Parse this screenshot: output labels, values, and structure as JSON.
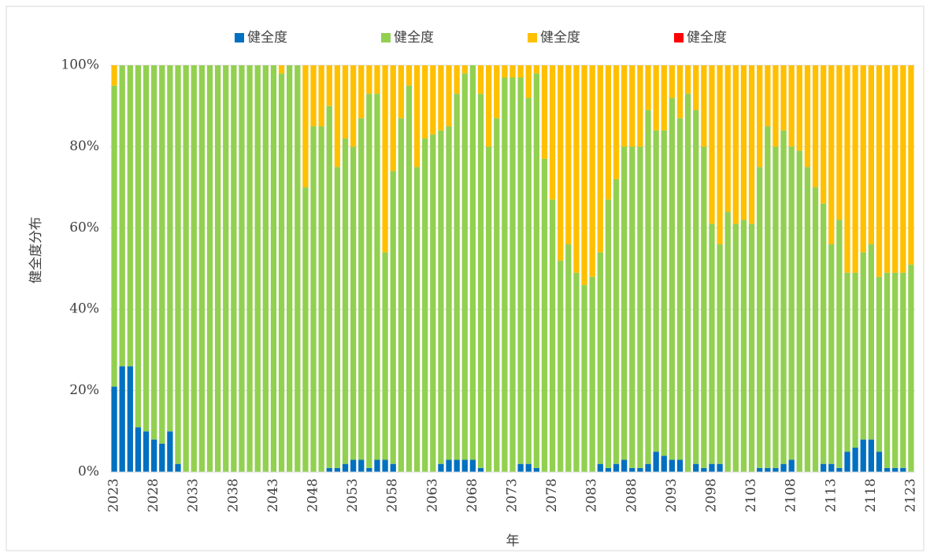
{
  "chart_data": {
    "type": "bar",
    "stacked": true,
    "percent": true,
    "y_label": "健全度分布",
    "x_label": "年",
    "categories": [
      "2023",
      null,
      null,
      null,
      null,
      "2028",
      null,
      null,
      null,
      null,
      "2033",
      null,
      null,
      null,
      null,
      "2038",
      null,
      null,
      null,
      null,
      "2043",
      null,
      null,
      null,
      null,
      "2048",
      null,
      null,
      null,
      null,
      "2053",
      null,
      null,
      null,
      null,
      "2058",
      null,
      null,
      null,
      null,
      "2063",
      null,
      null,
      null,
      null,
      "2068",
      null,
      null,
      null,
      null,
      "2073",
      null,
      null,
      null,
      null,
      "2078",
      null,
      null,
      null,
      null,
      "2083",
      null,
      null,
      null,
      null,
      "2088",
      null,
      null,
      null,
      null,
      "2093",
      null,
      null,
      null,
      null,
      "2098",
      null,
      null,
      null,
      null,
      "2103",
      null,
      null,
      null,
      null,
      "2108",
      null,
      null,
      null,
      null,
      "2113",
      null,
      null,
      null,
      null,
      "2118",
      null,
      null,
      null,
      null,
      "2123"
    ],
    "series": [
      {
        "name": "健全度",
        "color": "#0070c0",
        "values": [
          21,
          26,
          26,
          11,
          10,
          8,
          7,
          10,
          2,
          0,
          0,
          0,
          0,
          0,
          0,
          0,
          0,
          0,
          0,
          0,
          0,
          0,
          0,
          0,
          0,
          0,
          0,
          1,
          1,
          2,
          3,
          3,
          1,
          3,
          3,
          2,
          0,
          0,
          0,
          0,
          0,
          2,
          3,
          3,
          3,
          3,
          1,
          0,
          0,
          0,
          0,
          2,
          2,
          1,
          0,
          0,
          0,
          0,
          0,
          0,
          0,
          2,
          1,
          2,
          3,
          1,
          1,
          2,
          5,
          4,
          3,
          3,
          0,
          2,
          1,
          2,
          2,
          0,
          0,
          0,
          0,
          1,
          1,
          1,
          2,
          3,
          0,
          0,
          0,
          2,
          2,
          1,
          5,
          6,
          8,
          8,
          5,
          1,
          1,
          1,
          0
        ]
      },
      {
        "name": "健全度",
        "color": "#92d050",
        "values": [
          74,
          74,
          74,
          89,
          90,
          92,
          93,
          90,
          98,
          100,
          100,
          100,
          100,
          100,
          100,
          100,
          100,
          100,
          100,
          100,
          100,
          98,
          100,
          100,
          70,
          85,
          85,
          89,
          74,
          80,
          77,
          84,
          92,
          90,
          51,
          72,
          87,
          95,
          75,
          82,
          83,
          82,
          82,
          90,
          95,
          97,
          92,
          80,
          87,
          97,
          97,
          95,
          90,
          97,
          77,
          67,
          52,
          56,
          49,
          46,
          48,
          52,
          66,
          70,
          77,
          79,
          79,
          87,
          79,
          80,
          89,
          84,
          93,
          87,
          79,
          59,
          54,
          64,
          61,
          62,
          61,
          74,
          84,
          79,
          82,
          77,
          79,
          75,
          70,
          64,
          54,
          61,
          44,
          43,
          46,
          48,
          43,
          48,
          48,
          48,
          51
        ]
      },
      {
        "name": "健全度",
        "color": "#ffc000",
        "values": [
          5,
          0,
          0,
          0,
          0,
          0,
          0,
          0,
          0,
          0,
          0,
          0,
          0,
          0,
          0,
          0,
          0,
          0,
          0,
          0,
          0,
          2,
          0,
          0,
          30,
          15,
          15,
          10,
          25,
          18,
          20,
          13,
          7,
          7,
          46,
          26,
          13,
          5,
          25,
          18,
          17,
          16,
          15,
          7,
          2,
          0,
          7,
          20,
          13,
          3,
          3,
          3,
          8,
          2,
          23,
          33,
          48,
          44,
          51,
          54,
          52,
          46,
          33,
          28,
          20,
          20,
          20,
          11,
          16,
          16,
          8,
          13,
          7,
          11,
          20,
          39,
          44,
          36,
          39,
          38,
          39,
          25,
          15,
          20,
          16,
          20,
          21,
          25,
          30,
          34,
          44,
          38,
          51,
          51,
          46,
          44,
          52,
          51,
          51,
          51,
          49
        ]
      },
      {
        "name": "健全度",
        "color": "#ff0000",
        "values": [
          0,
          0,
          0,
          0,
          0,
          0,
          0,
          0,
          0,
          0,
          0,
          0,
          0,
          0,
          0,
          0,
          0,
          0,
          0,
          0,
          0,
          0,
          0,
          0,
          0,
          0,
          0,
          0,
          0,
          0,
          0,
          0,
          0,
          0,
          0,
          0,
          0,
          0,
          0,
          0,
          0,
          0,
          0,
          0,
          0,
          0,
          0,
          0,
          0,
          0,
          0,
          0,
          0,
          0,
          0,
          0,
          0,
          0,
          0,
          0,
          0,
          0,
          0,
          0,
          0,
          0,
          0,
          0,
          0,
          0,
          0,
          0,
          0,
          0,
          0,
          0,
          0,
          0,
          0,
          0,
          0,
          0,
          0,
          0,
          0,
          0,
          0,
          0,
          0,
          0,
          0,
          0,
          0,
          0,
          0,
          0,
          0,
          0,
          0,
          0,
          0
        ]
      }
    ],
    "ylim": [
      0,
      100
    ],
    "yticks": [
      {
        "value": 0,
        "label": "0%"
      },
      {
        "value": 20,
        "label": "20%"
      },
      {
        "value": 40,
        "label": "40%"
      },
      {
        "value": 60,
        "label": "60%"
      },
      {
        "value": 80,
        "label": "80%"
      },
      {
        "value": 100,
        "label": "100%"
      }
    ],
    "grid": true,
    "legend": "top"
  }
}
